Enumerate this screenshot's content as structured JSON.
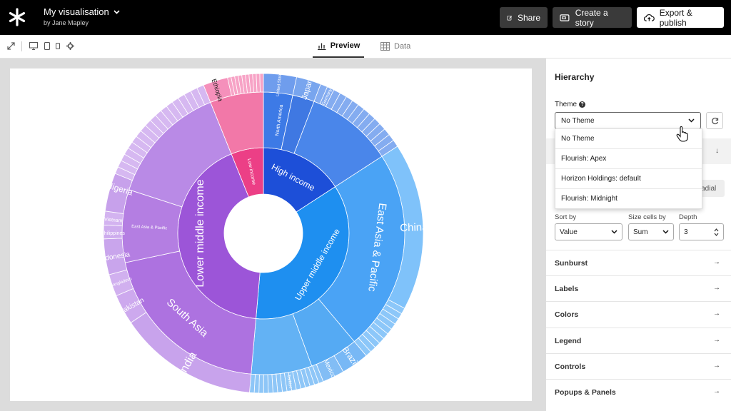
{
  "header": {
    "title": "My visualisation",
    "byline": "by Jane Mapley",
    "share_label": "Share",
    "story_label": "Create a story",
    "publish_label": "Export & publish"
  },
  "toolbar": {
    "tabs": [
      {
        "label": "Preview",
        "icon": "bar-chart-icon",
        "active": true
      },
      {
        "label": "Data",
        "icon": "table-icon",
        "active": false
      }
    ]
  },
  "chart_data": {
    "type": "sunburst",
    "rings": {
      "income": [
        {
          "label": "High income",
          "color": "#1d4fd8"
        },
        {
          "label": "Upper middle income",
          "color": "#1e8ff0"
        },
        {
          "label": "Lower middle income",
          "color": "#9c55d8"
        },
        {
          "label": "Low income",
          "color": "#ec3f86"
        }
      ],
      "regions": [
        "North America",
        "East Asia & Pacific",
        "South Asia",
        "East Asia & Pacific"
      ],
      "countries": [
        "United States",
        "Japan",
        "Germany",
        "China",
        "Brazil",
        "Mexico",
        "Türkiye",
        "India",
        "Pakistan",
        "Bangladesh",
        "Indonesia",
        "Philippines",
        "Vietnam",
        "Nigeria",
        "Ethiopia"
      ]
    }
  },
  "panel": {
    "title": "Hierarchy",
    "theme_label": "Theme",
    "theme_value": "No Theme",
    "theme_options": [
      "No Theme",
      "Flourish: Apex",
      "Horizon Holdings: default",
      "Flourish: Midnight"
    ],
    "radial_label": "radial",
    "sort_label": "Sort by",
    "sort_value": "Value",
    "size_label": "Size cells by",
    "size_value": "Sum",
    "depth_label": "Depth",
    "depth_value": "3",
    "sections": [
      "Sunburst",
      "Labels",
      "Colors",
      "Legend",
      "Controls",
      "Popups & Panels"
    ]
  }
}
